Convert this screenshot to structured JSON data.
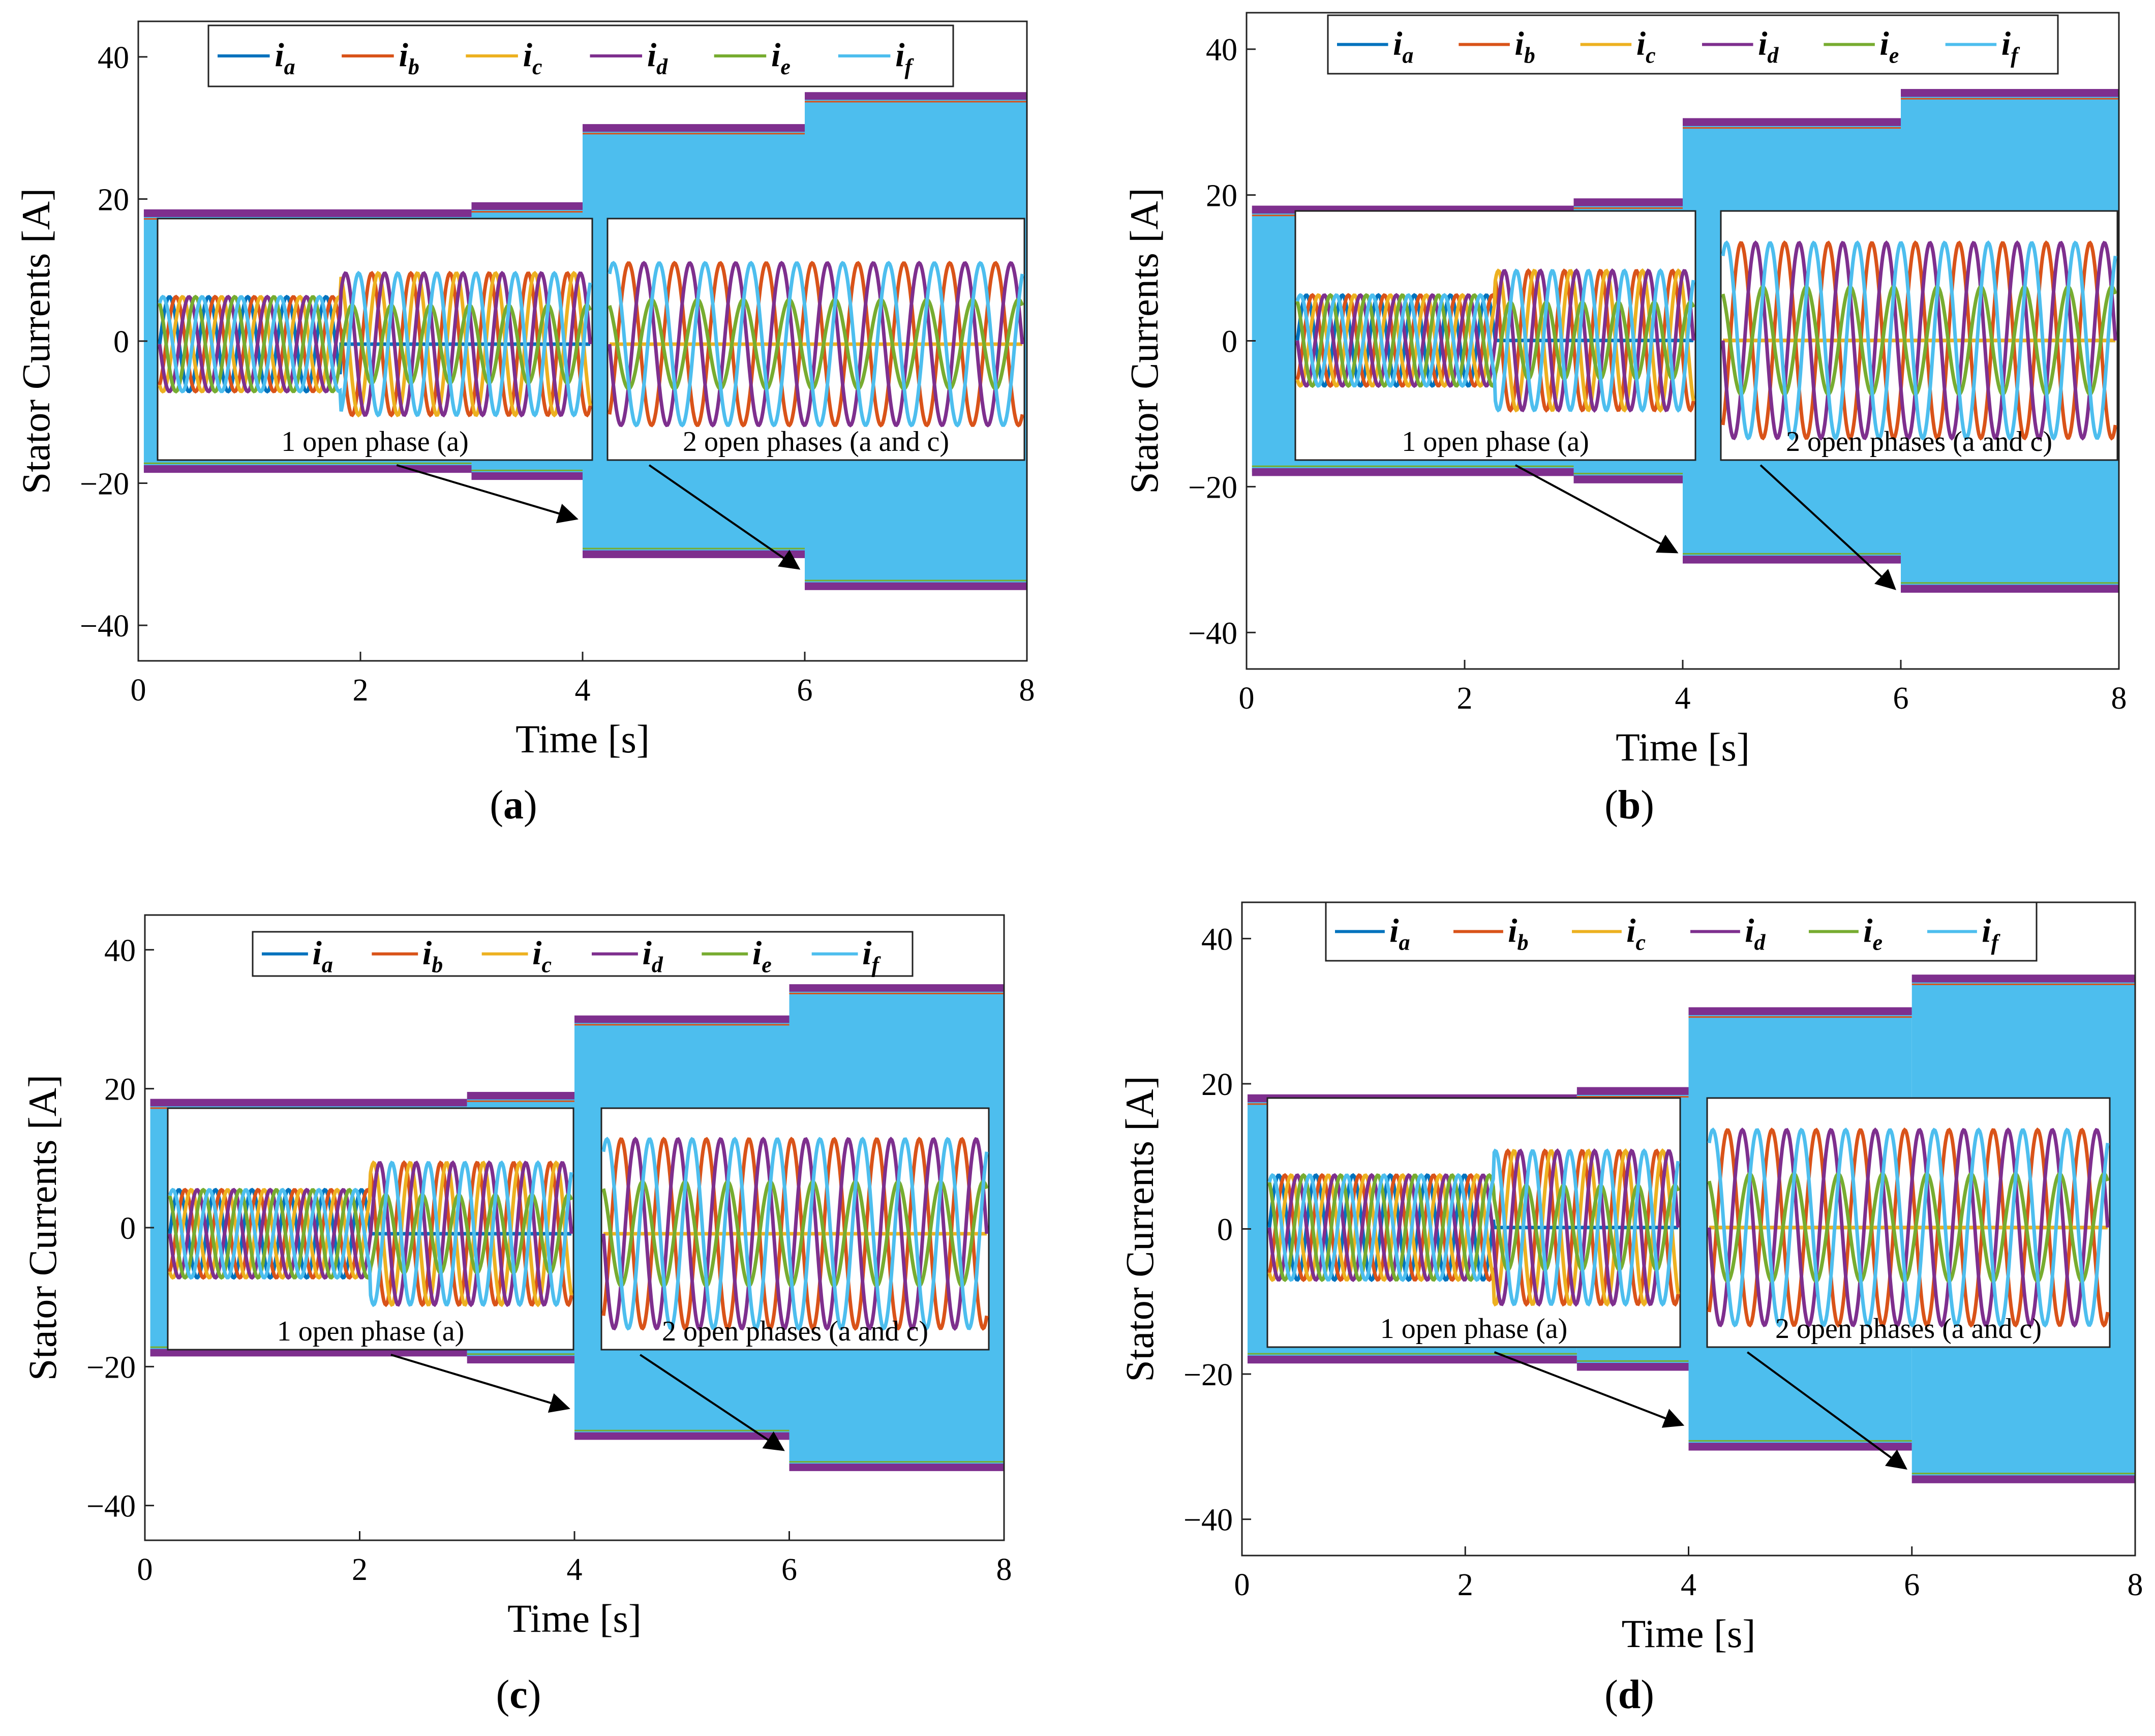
{
  "colors": {
    "ia": "#0072BD",
    "ib": "#D95319",
    "ic": "#EDB120",
    "id": "#7E2F8E",
    "ie": "#77AC30",
    "if": "#4DBEEE"
  },
  "chart_data": [
    {
      "type": "line",
      "panel": "a",
      "caption": {
        "open": "(",
        "letter": "a",
        "close": ")"
      },
      "xlabel": "Time [s]",
      "ylabel": "Stator Currents [A]",
      "xlim": [
        0,
        8
      ],
      "ylim": [
        -45,
        45
      ],
      "xticks": [
        "0",
        "2",
        "4",
        "6",
        "8"
      ],
      "yticks": [
        "−40",
        "−20",
        "0",
        "20",
        "40"
      ],
      "legend": [
        {
          "main": "i",
          "sub": "a",
          "color_key": "ia"
        },
        {
          "main": "i",
          "sub": "b",
          "color_key": "ib"
        },
        {
          "main": "i",
          "sub": "c",
          "color_key": "ic"
        },
        {
          "main": "i",
          "sub": "d",
          "color_key": "id"
        },
        {
          "main": "i",
          "sub": "e",
          "color_key": "ie"
        },
        {
          "main": "i",
          "sub": "f",
          "color_key": "if"
        }
      ],
      "envelope": {
        "segments": [
          {
            "t_start": 0,
            "t_end": 3,
            "peak": 18
          },
          {
            "t_start": 3,
            "t_end": 4,
            "peak": 19
          },
          {
            "t_start": 4,
            "t_end": 6,
            "peak": 30
          },
          {
            "t_start": 6,
            "t_end": 8,
            "peak": 34.5
          }
        ]
      },
      "insets": [
        {
          "label": "1 open phase (a)",
          "amp_pre": 7,
          "amp_post": 10.5,
          "switch_at": 0.42,
          "open_phases": [
            "a"
          ],
          "arrow_to": [
            4,
            -25
          ]
        },
        {
          "label": "2 open phases (a and c)",
          "amp_pre": 12,
          "amp_post": 12,
          "switch_at": 0,
          "open_phases": [
            "a",
            "c"
          ],
          "arrow_to": [
            6,
            -32
          ]
        }
      ]
    },
    {
      "type": "line",
      "panel": "b",
      "caption": {
        "open": "(",
        "letter": "b",
        "close": ")"
      },
      "xlabel": "Time [s]",
      "ylabel": "Stator Currents [A]",
      "xlim": [
        0,
        8
      ],
      "ylim": [
        -45,
        45
      ],
      "xticks": [
        "0",
        "2",
        "4",
        "6",
        "8"
      ],
      "yticks": [
        "−40",
        "−20",
        "0",
        "20",
        "40"
      ],
      "legend": [
        {
          "main": "i",
          "sub": "a",
          "color_key": "ia"
        },
        {
          "main": "i",
          "sub": "b",
          "color_key": "ib"
        },
        {
          "main": "i",
          "sub": "c",
          "color_key": "ic"
        },
        {
          "main": "i",
          "sub": "d",
          "color_key": "id"
        },
        {
          "main": "i",
          "sub": "e",
          "color_key": "ie"
        },
        {
          "main": "i",
          "sub": "f",
          "color_key": "if"
        }
      ],
      "envelope": {
        "segments": [
          {
            "t_start": 0,
            "t_end": 3,
            "peak": 18
          },
          {
            "t_start": 3,
            "t_end": 4,
            "peak": 19
          },
          {
            "t_start": 4,
            "t_end": 6,
            "peak": 30
          },
          {
            "t_start": 6,
            "t_end": 8,
            "peak": 34
          }
        ]
      },
      "insets": [
        {
          "label": "1 open phase (a)",
          "amp_pre": 6.5,
          "amp_post": 10,
          "switch_at": 0.5,
          "open_phases": [
            "a"
          ],
          "arrow_to": [
            4,
            -29
          ]
        },
        {
          "label": "2 open phases (a and c)",
          "amp_pre": 14,
          "amp_post": 14,
          "switch_at": 0,
          "open_phases": [
            "a",
            "c"
          ],
          "arrow_to": [
            6,
            -34
          ]
        }
      ]
    },
    {
      "type": "line",
      "panel": "c",
      "caption": {
        "open": "(",
        "letter": "c",
        "close": ")"
      },
      "xlabel": "Time [s]",
      "ylabel": "Stator Currents [A]",
      "xlim": [
        0,
        8
      ],
      "ylim": [
        -45,
        45
      ],
      "xticks": [
        "0",
        "2",
        "4",
        "6",
        "8"
      ],
      "yticks": [
        "−40",
        "−20",
        "0",
        "20",
        "40"
      ],
      "legend": [
        {
          "main": "i",
          "sub": "a",
          "color_key": "ia"
        },
        {
          "main": "i",
          "sub": "b",
          "color_key": "ib"
        },
        {
          "main": "i",
          "sub": "c",
          "color_key": "ic"
        },
        {
          "main": "i",
          "sub": "d",
          "color_key": "id"
        },
        {
          "main": "i",
          "sub": "e",
          "color_key": "ie"
        },
        {
          "main": "i",
          "sub": "f",
          "color_key": "if"
        }
      ],
      "envelope": {
        "segments": [
          {
            "t_start": 0,
            "t_end": 3,
            "peak": 18
          },
          {
            "t_start": 3,
            "t_end": 4,
            "peak": 19
          },
          {
            "t_start": 4,
            "t_end": 6,
            "peak": 30
          },
          {
            "t_start": 6,
            "t_end": 8,
            "peak": 34.5
          }
        ]
      },
      "insets": [
        {
          "label": "1 open phase (a)",
          "amp_pre": 6.5,
          "amp_post": 10.5,
          "switch_at": 0.5,
          "open_phases": [
            "a"
          ],
          "arrow_to": [
            4,
            -26
          ]
        },
        {
          "label": "2 open phases (a and c)",
          "amp_pre": 14,
          "amp_post": 14,
          "switch_at": 0,
          "open_phases": [
            "a",
            "c"
          ],
          "arrow_to": [
            6,
            -32
          ]
        }
      ]
    },
    {
      "type": "line",
      "panel": "d",
      "caption": {
        "open": "(",
        "letter": "d",
        "close": ")"
      },
      "xlabel": "Time [s]",
      "ylabel": "Stator Currents [A]",
      "xlim": [
        0,
        8
      ],
      "ylim": [
        -45,
        45
      ],
      "xticks": [
        "0",
        "2",
        "4",
        "6",
        "8"
      ],
      "yticks": [
        "−40",
        "−20",
        "0",
        "20",
        "40"
      ],
      "legend": [
        {
          "main": "i",
          "sub": "a",
          "color_key": "ia"
        },
        {
          "main": "i",
          "sub": "b",
          "color_key": "ib"
        },
        {
          "main": "i",
          "sub": "c",
          "color_key": "ic"
        },
        {
          "main": "i",
          "sub": "d",
          "color_key": "id"
        },
        {
          "main": "i",
          "sub": "e",
          "color_key": "ie"
        },
        {
          "main": "i",
          "sub": "f",
          "color_key": "if"
        }
      ],
      "envelope": {
        "segments": [
          {
            "t_start": 0,
            "t_end": 3,
            "peak": 18
          },
          {
            "t_start": 3,
            "t_end": 4,
            "peak": 19
          },
          {
            "t_start": 4,
            "t_end": 6,
            "peak": 30
          },
          {
            "t_start": 6,
            "t_end": 8,
            "peak": 34.5
          }
        ]
      },
      "insets": [
        {
          "label": "1 open phase (a)",
          "amp_pre": 7.5,
          "amp_post": 11,
          "switch_at": 0.55,
          "open_phases": [
            "a"
          ],
          "arrow_to": [
            4,
            -27
          ]
        },
        {
          "label": "2 open phases (a and c)",
          "amp_pre": 14,
          "amp_post": 14,
          "switch_at": 0,
          "open_phases": [
            "a",
            "c"
          ],
          "arrow_to": [
            6,
            -33
          ]
        }
      ]
    }
  ]
}
